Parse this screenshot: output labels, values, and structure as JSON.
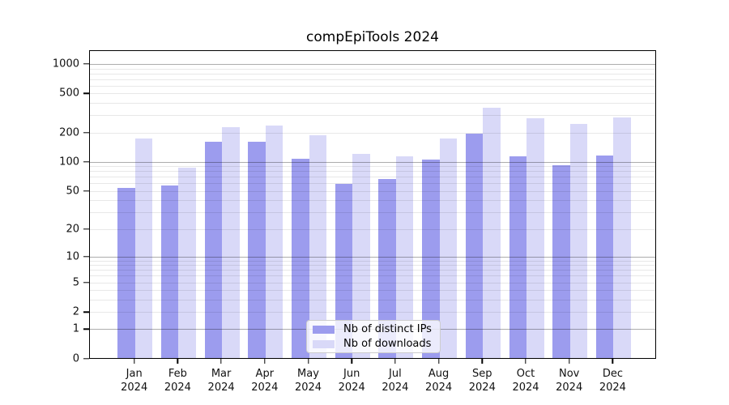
{
  "chart_data": {
    "type": "bar",
    "title": "compEpiTools 2024",
    "categories": [
      "Jan 2024",
      "Feb 2024",
      "Mar 2024",
      "Apr 2024",
      "May 2024",
      "Jun 2024",
      "Jul 2024",
      "Aug 2024",
      "Sep 2024",
      "Oct 2024",
      "Nov 2024",
      "Dec 2024"
    ],
    "series": [
      {
        "name": "Nb of distinct IPs",
        "color": "#9c9cee",
        "values": [
          53,
          56,
          157,
          159,
          106,
          58,
          65,
          104,
          191,
          112,
          91,
          113
        ]
      },
      {
        "name": "Nb of downloads",
        "color": "#d9d9f8",
        "values": [
          171,
          85,
          221,
          231,
          185,
          119,
          111,
          171,
          350,
          276,
          240,
          280
        ]
      }
    ],
    "xlabel": "",
    "ylabel": "",
    "yscale": "log1p",
    "yticks": [
      0,
      1,
      2,
      5,
      10,
      20,
      50,
      100,
      200,
      500,
      1000
    ],
    "ylim": [
      0,
      1380
    ],
    "grid": "both",
    "legend_position": "lower center"
  },
  "colors": {
    "bar_distinct_ips": "#9c9cee",
    "bar_downloads": "#d9d9f8",
    "grid_major": "rgba(0,0,0,0.32)",
    "grid_minor": "rgba(0,0,0,0.09)",
    "axis_spine": "#000000",
    "text": "#111111",
    "legend_border": "#cccccc",
    "legend_background": "rgba(255,255,255,0.8)"
  }
}
